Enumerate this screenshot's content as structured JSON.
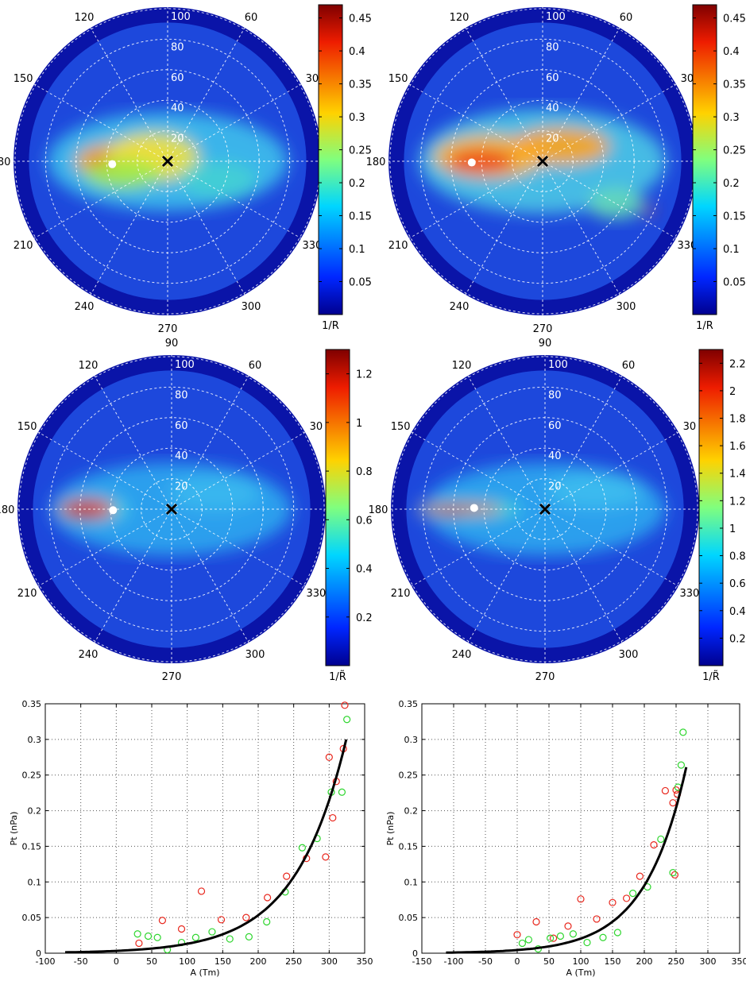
{
  "chart_data": [
    {
      "type": "heatmap",
      "subtype": "polar",
      "angle_ticks": [
        "0",
        "30",
        "60",
        "90",
        "120",
        "150",
        "180",
        "210",
        "240",
        "270",
        "300",
        "330"
      ],
      "radial_ticks": [
        "20",
        "40",
        "60",
        "80",
        "100"
      ],
      "colorbar": {
        "label": "1/R",
        "ticks": [
          "0.05",
          "0.1",
          "0.15",
          "0.2",
          "0.25",
          "0.3",
          "0.35",
          "0.4",
          "0.45"
        ],
        "min": 0,
        "max": 0.47
      },
      "colormap": "jet"
    },
    {
      "type": "heatmap",
      "subtype": "polar",
      "angle_ticks": [
        "0",
        "30",
        "60",
        "90",
        "120",
        "150",
        "180",
        "210",
        "240",
        "270",
        "300",
        "330"
      ],
      "radial_ticks": [
        "20",
        "40",
        "60",
        "80",
        "100"
      ],
      "colorbar": {
        "label": "1/R",
        "ticks": [
          "0.05",
          "0.1",
          "0.15",
          "0.2",
          "0.25",
          "0.3",
          "0.35",
          "0.4",
          "0.45"
        ],
        "min": 0,
        "max": 0.47
      },
      "colormap": "jet"
    },
    {
      "type": "heatmap",
      "subtype": "polar",
      "angle_ticks": [
        "0",
        "30",
        "60",
        "90",
        "120",
        "150",
        "180",
        "210",
        "240",
        "270",
        "300",
        "330"
      ],
      "radial_ticks": [
        "20",
        "40",
        "60",
        "80",
        "100"
      ],
      "colorbar": {
        "label": "1/R̃",
        "ticks": [
          "0.2",
          "0.4",
          "0.6",
          "0.8",
          "1",
          "1.2"
        ],
        "min": 0,
        "max": 1.3
      },
      "colormap": "jet"
    },
    {
      "type": "heatmap",
      "subtype": "polar",
      "angle_ticks": [
        "0",
        "30",
        "60",
        "90",
        "120",
        "150",
        "180",
        "210",
        "240",
        "270",
        "300",
        "330"
      ],
      "radial_ticks": [
        "20",
        "40",
        "60",
        "80",
        "100"
      ],
      "colorbar": {
        "label": "1/R̃",
        "ticks": [
          "0.2",
          "0.4",
          "0.6",
          "0.8",
          "1",
          "1.2",
          "1.4",
          "1.6",
          "1.8",
          "2",
          "2.2"
        ],
        "min": 0,
        "max": 2.3
      },
      "colormap": "jet"
    },
    {
      "type": "scatter",
      "xlabel": "A (Tm)",
      "ylabel": "Pt (nPa)",
      "xlim": [
        -100,
        350
      ],
      "ylim": [
        0,
        0.35
      ],
      "xticks": [
        -100,
        -50,
        0,
        50,
        100,
        150,
        200,
        250,
        300,
        350
      ],
      "yticks": [
        0,
        0.05,
        0.1,
        0.15,
        0.2,
        0.25,
        0.3,
        0.35
      ],
      "grid": true,
      "series": [
        {
          "color": "#e8261c",
          "marker": "open-circle",
          "points": [
            [
              32,
              0.014
            ],
            [
              65,
              0.046
            ],
            [
              92,
              0.034
            ],
            [
              120,
              0.087
            ],
            [
              148,
              0.047
            ],
            [
              183,
              0.05
            ],
            [
              213,
              0.078
            ],
            [
              240,
              0.108
            ],
            [
              268,
              0.133
            ],
            [
              295,
              0.135
            ],
            [
              300,
              0.275
            ],
            [
              305,
              0.19
            ],
            [
              310,
              0.241
            ],
            [
              320,
              0.287
            ],
            [
              322,
              0.348
            ]
          ]
        },
        {
          "color": "#2ed62e",
          "marker": "open-circle",
          "points": [
            [
              30,
              0.027
            ],
            [
              45,
              0.024
            ],
            [
              58,
              0.022
            ],
            [
              72,
              0.005
            ],
            [
              92,
              0.015
            ],
            [
              112,
              0.022
            ],
            [
              135,
              0.03
            ],
            [
              160,
              0.02
            ],
            [
              187,
              0.023
            ],
            [
              212,
              0.044
            ],
            [
              238,
              0.086
            ],
            [
              262,
              0.148
            ],
            [
              283,
              0.161
            ],
            [
              303,
              0.226
            ],
            [
              318,
              0.226
            ],
            [
              325,
              0.328
            ]
          ]
        },
        {
          "color": "#000000",
          "marker": "line",
          "curve": "exponential",
          "x_range": [
            -72,
            324
          ],
          "y_start": 0.0012,
          "y_end": 0.3
        }
      ]
    },
    {
      "type": "scatter",
      "xlabel": "A (Tm)",
      "ylabel": "Pt (nPa)",
      "xlim": [
        -150,
        350
      ],
      "ylim": [
        0,
        0.35
      ],
      "xticks": [
        -150,
        -100,
        -50,
        0,
        50,
        100,
        150,
        200,
        250,
        300,
        350
      ],
      "yticks": [
        0,
        0.05,
        0.1,
        0.15,
        0.2,
        0.25,
        0.3,
        0.35
      ],
      "grid": true,
      "series": [
        {
          "color": "#e8261c",
          "marker": "open-circle",
          "points": [
            [
              0,
              0.026
            ],
            [
              30,
              0.044
            ],
            [
              57,
              0.021
            ],
            [
              80,
              0.038
            ],
            [
              100,
              0.076
            ],
            [
              125,
              0.048
            ],
            [
              150,
              0.071
            ],
            [
              172,
              0.077
            ],
            [
              193,
              0.108
            ],
            [
              215,
              0.152
            ],
            [
              233,
              0.228
            ],
            [
              245,
              0.211
            ],
            [
              250,
              0.229
            ],
            [
              252,
              0.223
            ],
            [
              248,
              0.11
            ]
          ]
        },
        {
          "color": "#2ed62e",
          "marker": "open-circle",
          "points": [
            [
              8,
              0.014
            ],
            [
              18,
              0.019
            ],
            [
              33,
              0.006
            ],
            [
              52,
              0.021
            ],
            [
              68,
              0.024
            ],
            [
              88,
              0.027
            ],
            [
              110,
              0.015
            ],
            [
              135,
              0.022
            ],
            [
              158,
              0.029
            ],
            [
              182,
              0.084
            ],
            [
              205,
              0.093
            ],
            [
              226,
              0.16
            ],
            [
              245,
              0.113
            ],
            [
              253,
              0.233
            ],
            [
              258,
              0.264
            ],
            [
              261,
              0.31
            ]
          ]
        },
        {
          "color": "#000000",
          "marker": "line",
          "curve": "exponential",
          "x_range": [
            -112,
            266
          ],
          "y_start": 0.0008,
          "y_end": 0.261
        }
      ]
    }
  ]
}
